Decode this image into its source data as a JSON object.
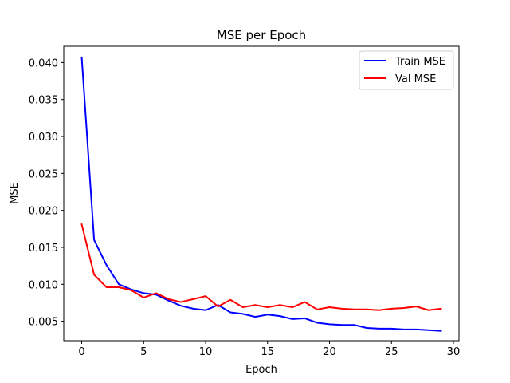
{
  "chart_data": {
    "type": "line",
    "title": "MSE per Epoch",
    "xlabel": "Epoch",
    "ylabel": "MSE",
    "xlim": [
      -1.45,
      30.45
    ],
    "ylim": [
      0.00237,
      0.0422
    ],
    "xticks": [
      0,
      5,
      10,
      15,
      20,
      25,
      30
    ],
    "xtick_labels": [
      "0",
      "5",
      "10",
      "15",
      "20",
      "25",
      "30"
    ],
    "yticks": [
      0.005,
      0.01,
      0.015,
      0.02,
      0.025,
      0.03,
      0.035,
      0.04
    ],
    "ytick_labels": [
      "0.005",
      "0.010",
      "0.015",
      "0.020",
      "0.025",
      "0.030",
      "0.035",
      "0.040"
    ],
    "grid": false,
    "legend_position": "top-right",
    "x": [
      0,
      1,
      2,
      3,
      4,
      5,
      6,
      7,
      8,
      9,
      10,
      11,
      12,
      13,
      14,
      15,
      16,
      17,
      18,
      19,
      20,
      21,
      22,
      23,
      24,
      25,
      26,
      27,
      28,
      29
    ],
    "series": [
      {
        "name": "Train MSE",
        "color": "#0000ff",
        "values": [
          0.0407,
          0.016,
          0.0126,
          0.01,
          0.0093,
          0.0088,
          0.0086,
          0.0078,
          0.0071,
          0.0067,
          0.0065,
          0.0072,
          0.0062,
          0.006,
          0.0056,
          0.0059,
          0.0057,
          0.0053,
          0.0054,
          0.0048,
          0.0046,
          0.0045,
          0.0045,
          0.0041,
          0.004,
          0.004,
          0.0039,
          0.0039,
          0.0038,
          0.0037
        ]
      },
      {
        "name": "Val MSE",
        "color": "#ff0000",
        "values": [
          0.0181,
          0.0113,
          0.0096,
          0.0096,
          0.0092,
          0.0082,
          0.0088,
          0.008,
          0.0076,
          0.008,
          0.0084,
          0.007,
          0.0079,
          0.0069,
          0.0072,
          0.0069,
          0.0072,
          0.0069,
          0.0076,
          0.0066,
          0.0069,
          0.0067,
          0.0066,
          0.0066,
          0.0065,
          0.0067,
          0.0068,
          0.007,
          0.0065,
          0.0067
        ]
      }
    ]
  }
}
